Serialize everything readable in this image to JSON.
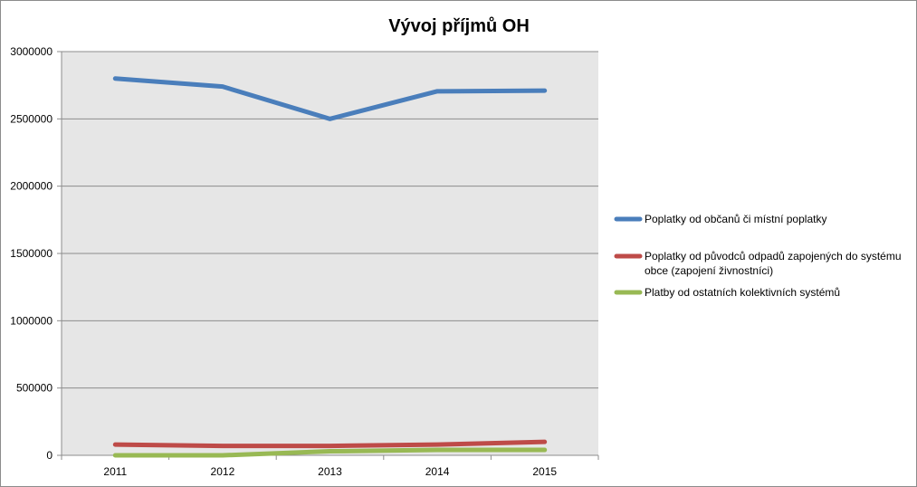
{
  "chart_data": {
    "type": "line",
    "title": "Vývoj příjmů OH",
    "xlabel": "",
    "ylabel": "",
    "categories": [
      "2011",
      "2012",
      "2013",
      "2014",
      "2015"
    ],
    "ylim": [
      0,
      3000000
    ],
    "yticks": [
      0,
      500000,
      1000000,
      1500000,
      2000000,
      2500000,
      3000000
    ],
    "ytick_labels": [
      "0",
      "500000",
      "1000000",
      "1500000",
      "2000000",
      "2500000",
      "3000000"
    ],
    "grid": "horizontal",
    "legend_position": "right",
    "series": [
      {
        "name": "Poplatky od občanů či místní poplatky",
        "legend_lines": [
          "Poplatky od občanů či místní poplatky"
        ],
        "color": "#4a7ebb",
        "values": [
          2800000,
          2740000,
          2500000,
          2705000,
          2710000
        ]
      },
      {
        "name": "Poplatky od původců odpadů zapojených do systému obce (zapojení živnostníci)",
        "legend_lines": [
          "Poplatky od původců odpadů zapojených do systému",
          "obce (zapojení živnostníci)"
        ],
        "color": "#be4b48",
        "values": [
          80000,
          70000,
          70000,
          80000,
          100000
        ]
      },
      {
        "name": "Platby od ostatních kolektivních systémů",
        "legend_lines": [
          "Platby od ostatních kolektivních systémů"
        ],
        "color": "#98b954",
        "values": [
          0,
          0,
          30000,
          40000,
          40000
        ]
      }
    ]
  }
}
